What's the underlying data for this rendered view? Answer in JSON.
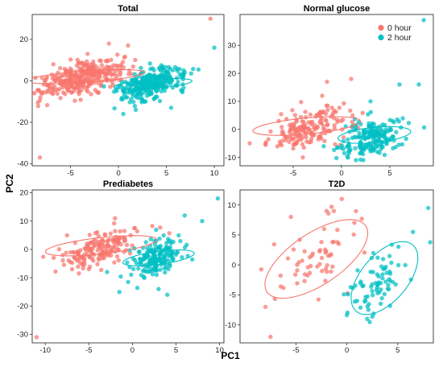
{
  "figure": {
    "xlabel": "PC1",
    "ylabel": "PC2"
  },
  "colors": {
    "hour0": "#F8766D",
    "hour2": "#00BFC4"
  },
  "legend": [
    {
      "label": "0 hour",
      "color": "#F8766D"
    },
    {
      "label": "2 hour",
      "color": "#00BFC4"
    }
  ],
  "chart_data": [
    {
      "type": "scatter",
      "title": "Total",
      "xlim": [
        -9,
        11
      ],
      "ylim": [
        -41,
        32
      ],
      "xticks": [
        -5,
        0,
        5,
        10
      ],
      "yticks": [
        -40,
        -20,
        0,
        20
      ],
      "series": [
        {
          "name": "0 hour",
          "center": [
            -3.8,
            1.5
          ],
          "spread": [
            2.2,
            4.6
          ],
          "corr": 0.55,
          "n": 340,
          "outliers": [
            [
              -8.2,
              -37
            ],
            [
              9.6,
              30
            ],
            [
              -7.5,
              -2
            ],
            [
              -6.8,
              8
            ],
            [
              -1,
              18
            ],
            [
              1,
              17
            ]
          ]
        },
        {
          "name": "2 hour",
          "center": [
            3.4,
            -1.5
          ],
          "spread": [
            1.8,
            4.2
          ],
          "corr": 0.5,
          "n": 300,
          "outliers": [
            [
              10,
              16
            ],
            [
              0.5,
              -16
            ],
            [
              6.8,
              5
            ],
            [
              1.8,
              -14
            ],
            [
              5.5,
              -13
            ]
          ]
        }
      ],
      "ellipses": [
        {
          "series": "0 hour",
          "center": [
            -3.4,
            2.0
          ],
          "rx": 6.5,
          "ry": 2.6,
          "angle_deg": 22
        },
        {
          "series": "2 hour",
          "center": [
            3.6,
            -1.5
          ],
          "rx": 4.4,
          "ry": 2.0,
          "angle_deg": 25
        }
      ]
    },
    {
      "type": "scatter",
      "title": "Normal glucose",
      "xlim": [
        -10.5,
        9.5
      ],
      "ylim": [
        -13,
        41
      ],
      "xticks": [
        -5,
        0,
        5
      ],
      "yticks": [
        -10,
        0,
        10,
        20,
        30
      ],
      "series": [
        {
          "name": "0 hour",
          "center": [
            -3.2,
            0.5
          ],
          "spread": [
            2.0,
            4.0
          ],
          "corr": 0.5,
          "n": 170,
          "outliers": [
            [
              -9.5,
              -5
            ],
            [
              -6.5,
              3
            ],
            [
              -1.5,
              17
            ],
            [
              -4,
              -10
            ],
            [
              1,
              18
            ],
            [
              -2,
              12
            ]
          ]
        },
        {
          "name": "2 hour",
          "center": [
            3.0,
            -3.0
          ],
          "spread": [
            1.6,
            3.6
          ],
          "corr": 0.45,
          "n": 190,
          "outliers": [
            [
              8.5,
              39
            ],
            [
              8,
              16
            ],
            [
              6,
              16
            ],
            [
              1.5,
              -11
            ],
            [
              3,
              10
            ]
          ]
        }
      ],
      "ellipses": [
        {
          "series": "0 hour",
          "center": [
            -3.6,
            1.2
          ],
          "rx": 5.9,
          "ry": 2.7,
          "angle_deg": 22
        },
        {
          "series": "2 hour",
          "center": [
            3.4,
            -2.0
          ],
          "rx": 4.1,
          "ry": 2.5,
          "angle_deg": 30
        }
      ]
    },
    {
      "type": "scatter",
      "title": "Prediabetes",
      "xlim": [
        -11.5,
        10.5
      ],
      "ylim": [
        -33,
        21
      ],
      "xticks": [
        -10,
        -5,
        0,
        5,
        10
      ],
      "yticks": [
        -30,
        -20,
        -10,
        0,
        10,
        20
      ],
      "series": [
        {
          "name": "0 hour",
          "center": [
            -3.5,
            1.0
          ],
          "spread": [
            2.2,
            3.6
          ],
          "corr": 0.5,
          "n": 170,
          "outliers": [
            [
              -11,
              -31
            ],
            [
              -7.5,
              5
            ],
            [
              -2,
              11
            ],
            [
              -5,
              -7
            ],
            [
              -8,
              -2
            ]
          ]
        },
        {
          "name": "2 hour",
          "center": [
            2.8,
            -3.0
          ],
          "spread": [
            1.6,
            3.4
          ],
          "corr": 0.45,
          "n": 190,
          "outliers": [
            [
              9.8,
              18
            ],
            [
              8,
              10
            ],
            [
              6,
              12
            ],
            [
              -1.5,
              -15
            ],
            [
              3,
              -14
            ],
            [
              4,
              -16
            ]
          ]
        }
      ],
      "ellipses": [
        {
          "series": "0 hour",
          "center": [
            -3.6,
            1.3
          ],
          "rx": 6.8,
          "ry": 2.7,
          "angle_deg": 22
        },
        {
          "series": "2 hour",
          "center": [
            3.0,
            -3.0
          ],
          "rx": 4.5,
          "ry": 2.1,
          "angle_deg": 28
        }
      ]
    },
    {
      "type": "scatter",
      "title": "T2D",
      "xlim": [
        -10.5,
        8.5
      ],
      "ylim": [
        -13,
        12.5
      ],
      "xticks": [
        -5,
        0,
        5
      ],
      "yticks": [
        -10,
        -5,
        0,
        5,
        10
      ],
      "series": [
        {
          "name": "0 hour",
          "center": [
            -3.2,
            1.0
          ],
          "spread": [
            2.2,
            3.4
          ],
          "corr": 0.6,
          "n": 60,
          "outliers": [
            [
              -8,
              -7
            ],
            [
              -7.5,
              -12
            ],
            [
              -0.5,
              11
            ],
            [
              -5.5,
              8
            ],
            [
              -2,
              9
            ]
          ]
        },
        {
          "name": "2 hour",
          "center": [
            3.5,
            -2.5
          ],
          "spread": [
            1.4,
            3.0
          ],
          "corr": 0.5,
          "n": 75,
          "outliers": [
            [
              8,
              9.5
            ],
            [
              6.5,
              5.5
            ],
            [
              1,
              -6
            ],
            [
              2,
              -9
            ]
          ]
        }
      ],
      "ellipses": [
        {
          "series": "0 hour",
          "center": [
            -3.0,
            1.0
          ],
          "rx": 7.6,
          "ry": 3.3,
          "angle_deg": 56
        },
        {
          "series": "2 hour",
          "center": [
            3.7,
            -2.2
          ],
          "rx": 6.4,
          "ry": 2.6,
          "angle_deg": 70
        }
      ]
    }
  ]
}
